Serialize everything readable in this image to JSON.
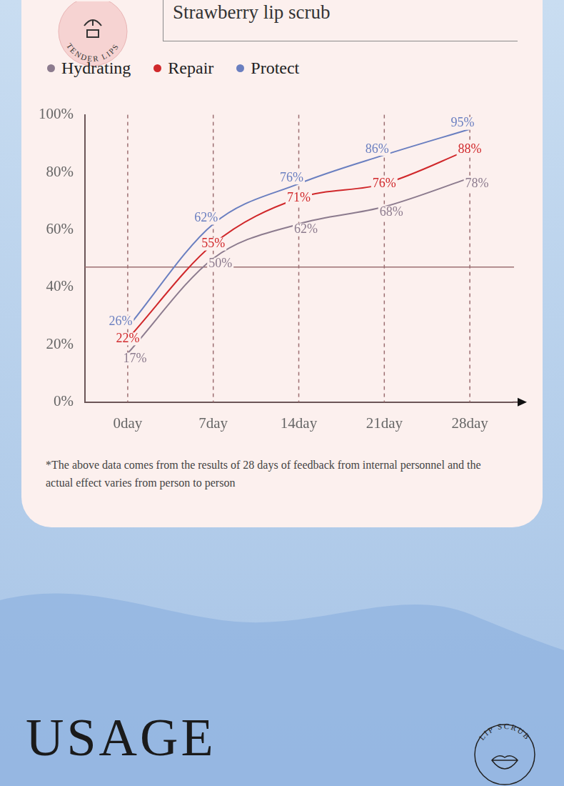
{
  "header": {
    "title": "Strawberry lip scrub",
    "badge": "TENDER LIPS"
  },
  "chart_data": {
    "type": "line",
    "categories": [
      "0day",
      "7day",
      "14day",
      "21day",
      "28day"
    ],
    "series": [
      {
        "name": "Hydrating",
        "color": "#8c7b8e",
        "values": [
          17,
          50,
          62,
          68,
          78
        ],
        "value_labels": [
          "17%",
          "50%",
          "62%",
          "68%",
          "78%"
        ]
      },
      {
        "name": "Repair",
        "color": "#d0282b",
        "values": [
          22,
          55,
          71,
          76,
          88
        ],
        "value_labels": [
          "22%",
          "55%",
          "71%",
          "76%",
          "88%"
        ]
      },
      {
        "name": "Protect",
        "color": "#6a7fc0",
        "values": [
          26,
          62,
          76,
          86,
          95
        ],
        "value_labels": [
          "26%",
          "62%",
          "76%",
          "86%",
          "95%"
        ]
      }
    ],
    "ylim": [
      0,
      100
    ],
    "yticks": [
      {
        "value": 0,
        "label": "0%"
      },
      {
        "value": 20,
        "label": "20%"
      },
      {
        "value": 40,
        "label": "40%"
      },
      {
        "value": 60,
        "label": "60%"
      },
      {
        "value": 80,
        "label": "80%"
      },
      {
        "value": 100,
        "label": "100%"
      }
    ],
    "grid": "x",
    "legend": "top-left",
    "data_labels": true,
    "reference_line": 47
  },
  "footnote": "*The above data comes from the results of 28 days of feedback from internal personnel and the actual effect varies from person to person",
  "section": {
    "title": "USAGE",
    "badge": "LIP SCRUB"
  }
}
